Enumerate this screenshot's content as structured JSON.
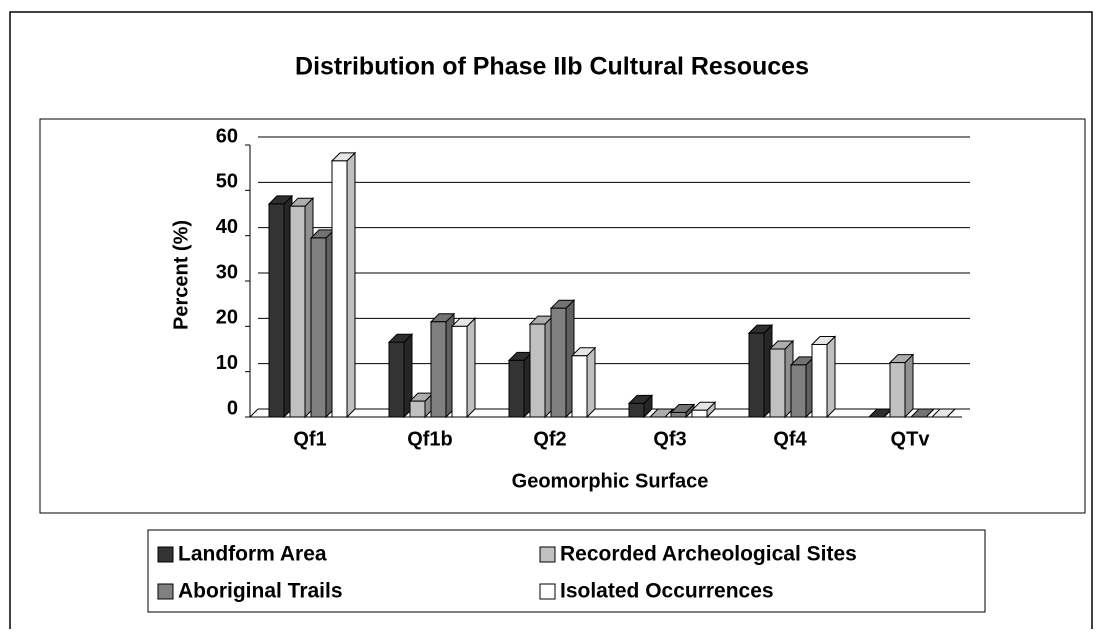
{
  "chart_data": {
    "type": "bar3d",
    "title": "Distribution of Phase IIb Cultural Resouces",
    "x_label": "Geomorphic Surface",
    "y_label": "Percent (%)",
    "categories": [
      "Qf1",
      "Qf1b",
      "Qf2",
      "Qf3",
      "Qf4",
      "QTv"
    ],
    "series": [
      {
        "name": "Landform Area",
        "color": "#333333",
        "values": [
          47,
          16.5,
          12.5,
          3,
          18.5,
          0
        ]
      },
      {
        "name": "Recorded Archeological Sites",
        "color": "#c0c0c0",
        "values": [
          46.5,
          3.5,
          20.5,
          0,
          15,
          12
        ]
      },
      {
        "name": "Aboriginal Trails",
        "color": "#808080",
        "values": [
          39.5,
          21,
          24,
          1,
          11.5,
          0
        ]
      },
      {
        "name": "Isolated Occurrences",
        "color": "#ffffff",
        "values": [
          56.5,
          20,
          13.5,
          1.5,
          16,
          0
        ]
      }
    ],
    "ylim": [
      0,
      60
    ],
    "yticks": [
      0,
      10,
      20,
      30,
      40,
      50,
      60
    ],
    "grid": true,
    "legend": "bottom"
  }
}
